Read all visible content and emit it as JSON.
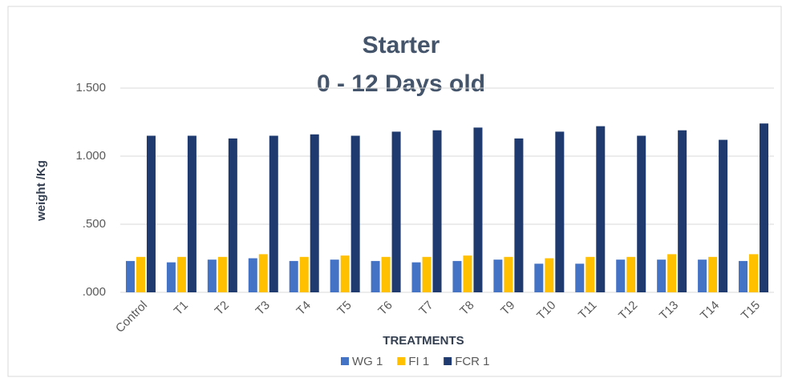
{
  "chart_data": {
    "type": "bar",
    "title": "Starter",
    "subtitle": "0 - 12 Days old",
    "x_label": "TREATMENTS",
    "y_label": "weight /Kg",
    "categories": [
      "Control",
      "T1",
      "T2",
      "T3",
      "T4",
      "T5",
      "T6",
      "T7",
      "T8",
      "T9",
      "T10",
      "T11",
      "T12",
      "T13",
      "T14",
      "T15"
    ],
    "series": [
      {
        "name": "WG 1",
        "color": "#4472c4",
        "values": [
          0.23,
          0.22,
          0.24,
          0.25,
          0.23,
          0.24,
          0.23,
          0.22,
          0.23,
          0.24,
          0.21,
          0.21,
          0.24,
          0.24,
          0.24,
          0.23
        ]
      },
      {
        "name": "FI 1",
        "color": "#ffc000",
        "values": [
          0.26,
          0.26,
          0.26,
          0.28,
          0.26,
          0.27,
          0.26,
          0.26,
          0.27,
          0.26,
          0.25,
          0.26,
          0.26,
          0.28,
          0.26,
          0.28
        ]
      },
      {
        "name": "FCR 1",
        "color": "#1f3a6e",
        "values": [
          1.15,
          1.15,
          1.13,
          1.15,
          1.16,
          1.15,
          1.18,
          1.19,
          1.21,
          1.13,
          1.18,
          1.22,
          1.15,
          1.19,
          1.12,
          1.24
        ]
      }
    ],
    "ylim": [
      0,
      1.5
    ],
    "yticks": [
      {
        "value": 0,
        "label": ".000"
      },
      {
        "value": 0.5,
        "label": ".500"
      },
      {
        "value": 1,
        "label": "1.000"
      },
      {
        "value": 1.5,
        "label": "1.500"
      }
    ],
    "grid": true,
    "legend": "bottom"
  }
}
